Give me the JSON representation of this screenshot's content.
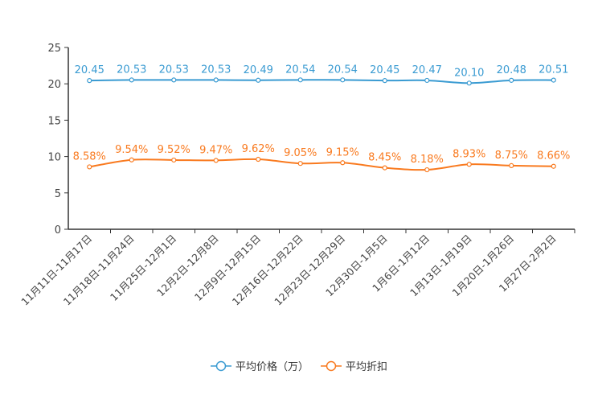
{
  "chart_data": {
    "type": "line",
    "title": "",
    "categories": [
      "11月11日-11月17日",
      "11月18日-11月24日",
      "11月25日-12月1日",
      "12月2日-12月8日",
      "12月9日-12月15日",
      "12月16日-12月22日",
      "12月23日-12月29日",
      "12月30日-1月5日",
      "1月6日-1月12日",
      "1月13日-1月19日",
      "1月20日-1月26日",
      "1月27日-2月2日"
    ],
    "ylim": [
      0,
      25
    ],
    "yticks": [
      0,
      5,
      10,
      15,
      20,
      25
    ],
    "grid": false,
    "legend": "bottom",
    "series": [
      {
        "name": "平均价格（万）",
        "color": "#3a9bd2",
        "values": [
          20.45,
          20.53,
          20.53,
          20.53,
          20.49,
          20.54,
          20.54,
          20.45,
          20.47,
          20.1,
          20.48,
          20.51
        ],
        "labels": [
          "20.45",
          "20.53",
          "20.53",
          "20.53",
          "20.49",
          "20.54",
          "20.54",
          "20.45",
          "20.47",
          "20.10",
          "20.48",
          "20.51"
        ]
      },
      {
        "name": "平均折扣",
        "color": "#f97a1f",
        "values": [
          8.58,
          9.54,
          9.52,
          9.47,
          9.62,
          9.05,
          9.15,
          8.45,
          8.18,
          8.93,
          8.75,
          8.66
        ],
        "labels": [
          "8.58%",
          "9.54%",
          "9.52%",
          "9.47%",
          "9.62%",
          "9.05%",
          "9.15%",
          "8.45%",
          "8.18%",
          "8.93%",
          "8.75%",
          "8.66%"
        ]
      }
    ]
  }
}
